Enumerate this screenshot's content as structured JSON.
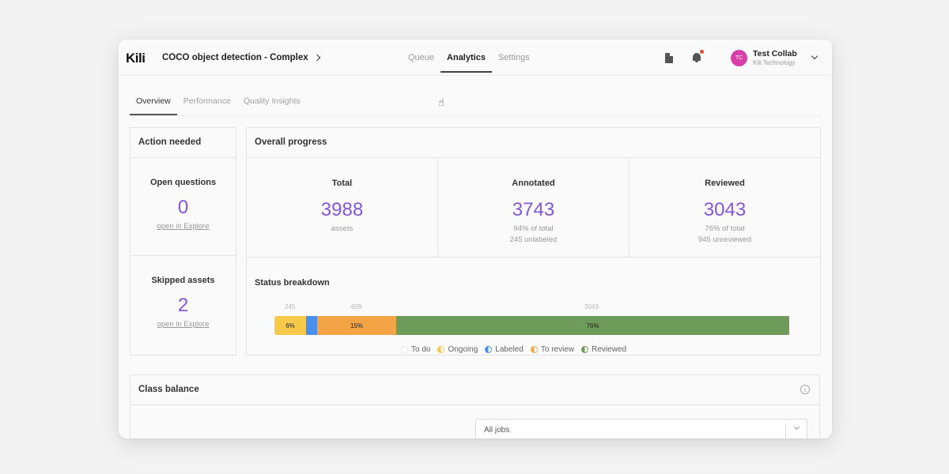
{
  "app": {
    "logo": "Kili",
    "project": "COCO object detection - Complex"
  },
  "nav": {
    "tabs": [
      {
        "label": "Queue"
      },
      {
        "label": "Analytics"
      },
      {
        "label": "Settings"
      }
    ]
  },
  "user": {
    "initials": "TC",
    "name": "Test Collab",
    "org": "Kili Technology"
  },
  "subtabs": [
    {
      "label": "Overview"
    },
    {
      "label": "Performance"
    },
    {
      "label": "Quality Insights"
    }
  ],
  "action": {
    "title": "Action needed",
    "open_questions": {
      "label": "Open questions",
      "value": "0",
      "link": "open in Explore"
    },
    "skipped": {
      "label": "Skipped assets",
      "value": "2",
      "link": "open in Explore"
    }
  },
  "overall": {
    "title": "Overall progress",
    "total": {
      "label": "Total",
      "value": "3988",
      "sub1": "assets"
    },
    "annotated": {
      "label": "Annotated",
      "value": "3743",
      "sub1": "94% of total",
      "sub2": "245 unlabeled"
    },
    "reviewed": {
      "label": "Reviewed",
      "value": "3043",
      "sub1": "76% of total",
      "sub2": "945 unreviewed"
    }
  },
  "breakdown": {
    "title": "Status breakdown",
    "markers": [
      "245",
      "609",
      "3043"
    ],
    "segments": [
      {
        "name": "To do",
        "fraction": 0.0,
        "color": "#e8e8e8",
        "label": ""
      },
      {
        "name": "Ongoing",
        "fraction": 0.061,
        "color": "#f7c94a",
        "label": "6%"
      },
      {
        "name": "Labeled",
        "fraction": 0.021,
        "color": "#4a8ef0",
        "label": ""
      },
      {
        "name": "To review",
        "fraction": 0.153,
        "color": "#f3a445",
        "label": "15%"
      },
      {
        "name": "Reviewed",
        "fraction": 0.763,
        "color": "#6e9a5a",
        "label": "76%"
      }
    ],
    "legend": [
      {
        "label": "To do",
        "color": "#e8e8e8"
      },
      {
        "label": "Ongoing",
        "color": "#f7c94a"
      },
      {
        "label": "Labeled",
        "color": "#4a8ef0"
      },
      {
        "label": "To review",
        "color": "#f3a445"
      },
      {
        "label": "Reviewed",
        "color": "#6e9a5a"
      }
    ]
  },
  "class_balance": {
    "title": "Class balance",
    "select_value": "All jobs"
  }
}
